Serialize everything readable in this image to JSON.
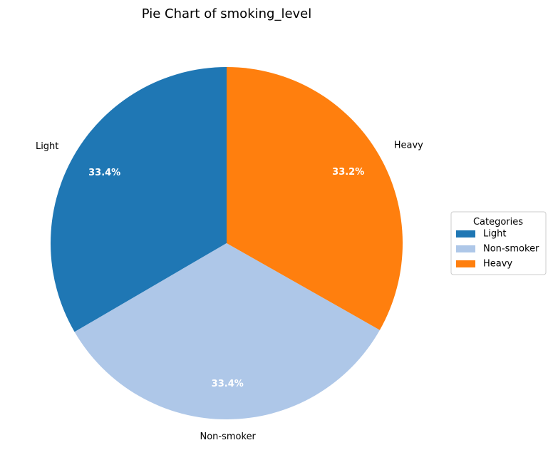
{
  "chart_data": {
    "type": "pie",
    "title": "Pie Chart of smoking_level",
    "categories": [
      "Light",
      "Non-smoker",
      "Heavy"
    ],
    "values": [
      33.4,
      33.4,
      33.2
    ],
    "value_labels": [
      "33.4%",
      "33.4%",
      "33.2%"
    ],
    "colors": [
      "#1f77b4",
      "#aec7e8",
      "#ff7f0e"
    ],
    "start_angle_deg": 90,
    "direction": "counterclockwise",
    "legend": {
      "title": "Categories",
      "placement": "center-right",
      "entries": [
        "Light",
        "Non-smoker",
        "Heavy"
      ]
    }
  }
}
